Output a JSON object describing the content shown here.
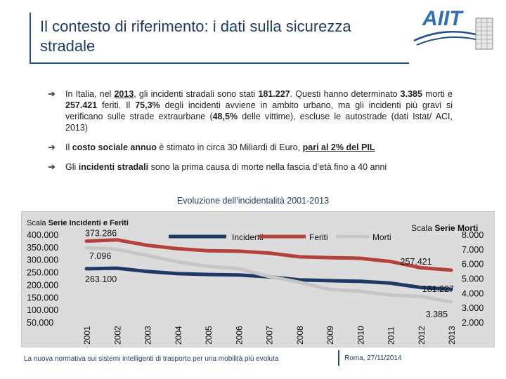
{
  "slide": {
    "title": "Il contesto di riferimento: i dati sulla sicurezza stradale",
    "logo_text": "AIIT"
  },
  "bullets": [
    {
      "parts": [
        "In Italia, nel ",
        "2013",
        ", gli incidenti stradali sono stati ",
        "181.227",
        ". Questi hanno determinato ",
        "3.385",
        " morti e ",
        "257.421",
        " feriti. Il ",
        "75,3%",
        " degli incidenti avviene in ambito urbano, ma gli incidenti più gravi si verificano sulle strade extraurbane (",
        "48,5%",
        " delle vittime), escluse le autostrade (dati Istat/ ACI, 2013)"
      ]
    },
    {
      "parts": [
        "Il ",
        "costo sociale annuo",
        " è stimato in circa 30 Miliardi di Euro, ",
        "pari al 2% del PIL"
      ]
    },
    {
      "parts": [
        "Gli ",
        "incidenti stradali",
        " sono la prima causa di morte nella fascia d’età fino a 40 anni"
      ]
    }
  ],
  "chart_title": "Evoluzione dell’incidentalità 2001-2013",
  "chart_data": {
    "type": "line",
    "left_axis_caption_prefix": "Scala ",
    "left_axis_caption_bold": "Serie Incidenti e Feriti",
    "right_axis_caption_prefix": "Scala ",
    "right_axis_caption_bold": "Serie Morti",
    "left_ticks": [
      "400.000",
      "350.000",
      "300.000",
      "250.000",
      "200.000",
      "150.000",
      "100.000",
      "50.000"
    ],
    "right_ticks": [
      "8.000",
      "7.000",
      "6.000",
      "5.000",
      "4.000",
      "3.000",
      "2.000"
    ],
    "left_range": [
      50000,
      400000
    ],
    "right_range": [
      2000,
      8000
    ],
    "x": [
      "2001",
      "2002",
      "2003",
      "2004",
      "2005",
      "2006",
      "2007",
      "2008",
      "2009",
      "2010",
      "2011",
      "2012",
      "2013"
    ],
    "series": [
      {
        "name": "Incidenti",
        "axis": "left",
        "color": "#1f3864",
        "values": [
          263100,
          265402,
          252271,
          243490,
          240011,
          238124,
          230871,
          218963,
          215405,
          212997,
          205638,
          188228,
          181227
        ]
      },
      {
        "name": "Feriti",
        "axis": "left",
        "color": "#b5413b",
        "values": [
          373286,
          378492,
          356475,
          343179,
          334858,
          332955,
          325850,
          310745,
          307258,
          304720,
          292019,
          266864,
          257421
        ]
      },
      {
        "name": "Morti",
        "axis": "right",
        "color": "#c6c6c6",
        "values": [
          7096,
          6980,
          6563,
          6122,
          5818,
          5669,
          5131,
          4725,
          4237,
          4114,
          3860,
          3753,
          3385
        ]
      }
    ],
    "annotations": [
      "373.286",
      "7.096",
      "263.100",
      "257.421",
      "181.227",
      "3.385"
    ]
  },
  "footer": {
    "left": "La nuova normativa sui sistemi intelligenti di trasporto per una mobilità più evoluta",
    "right": "Roma, 27/11/2014"
  }
}
